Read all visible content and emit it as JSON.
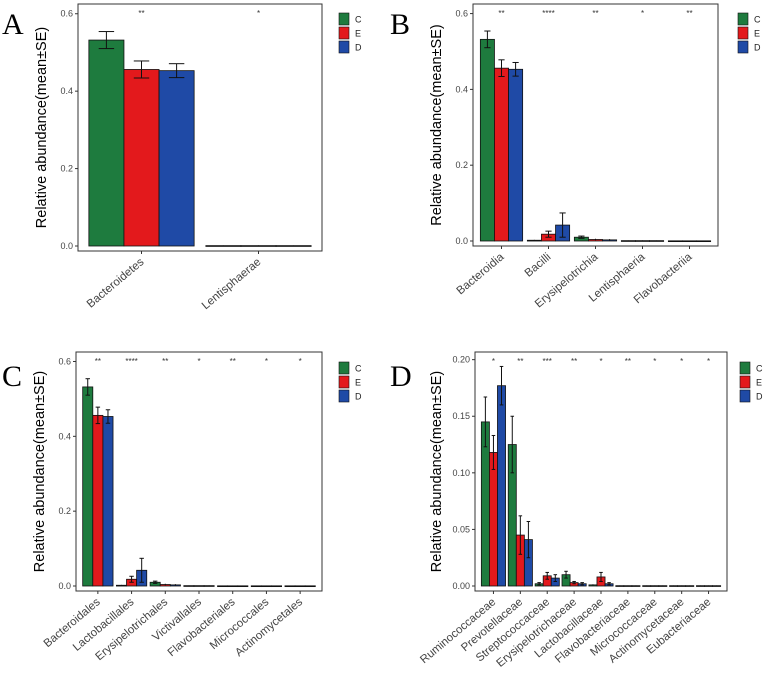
{
  "colors": {
    "C": "#1e7b3e",
    "E": "#e3191c",
    "D": "#1f4aa6"
  },
  "ylabel": "Relative abundance(mean±SE)",
  "legend": [
    "C",
    "E",
    "D"
  ],
  "chart_data": [
    {
      "panel": "A",
      "type": "bar",
      "ylabel": "Relative abundance(mean±SE)",
      "ylim": [
        0,
        0.62
      ],
      "yticks": [
        "0.0",
        "0.2",
        "0.4",
        "0.6"
      ],
      "categories": [
        "Bacteroidetes",
        "Lentisphaerae"
      ],
      "significance": [
        "**",
        "*"
      ],
      "series": [
        {
          "name": "C",
          "values": [
            0.532,
            0.001
          ],
          "se": [
            0.022,
            0.0005
          ]
        },
        {
          "name": "E",
          "values": [
            0.456,
            0.001
          ],
          "se": [
            0.022,
            0.0005
          ]
        },
        {
          "name": "D",
          "values": [
            0.453,
            0.001
          ],
          "se": [
            0.018,
            0.0005
          ]
        }
      ],
      "legend": [
        "C",
        "E",
        "D"
      ]
    },
    {
      "panel": "B",
      "type": "bar",
      "ylabel": "Relative abundance(mean±SE)",
      "ylim": [
        0,
        0.62
      ],
      "yticks": [
        "0.0",
        "0.2",
        "0.4",
        "0.6"
      ],
      "categories": [
        "Bacteroidia",
        "Bacilli",
        "Erysipelotrichia",
        "Lentisphaeria",
        "Flavobacteriia"
      ],
      "significance": [
        "**",
        "****",
        "**",
        "*",
        "**"
      ],
      "series": [
        {
          "name": "C",
          "values": [
            0.532,
            0.002,
            0.01,
            0.001,
            0.0005
          ],
          "se": [
            0.022,
            0.001,
            0.003,
            0.0005,
            0.0003
          ]
        },
        {
          "name": "E",
          "values": [
            0.456,
            0.018,
            0.004,
            0.001,
            0.0005
          ],
          "se": [
            0.022,
            0.008,
            0.002,
            0.0005,
            0.0003
          ]
        },
        {
          "name": "D",
          "values": [
            0.453,
            0.042,
            0.003,
            0.001,
            0.0005
          ],
          "se": [
            0.018,
            0.032,
            0.002,
            0.0005,
            0.0003
          ]
        }
      ],
      "legend": [
        "C",
        "E",
        "D"
      ]
    },
    {
      "panel": "C",
      "type": "bar",
      "ylabel": "Relative abundance(mean±SE)",
      "ylim": [
        0,
        0.62
      ],
      "yticks": [
        "0.0",
        "0.2",
        "0.4",
        "0.6"
      ],
      "categories": [
        "Bacteroidales",
        "Lactobacillales",
        "Erysipelotrichales",
        "Victivallales",
        "Flavobacteriales",
        "Micrococcales",
        "Actinomycetales"
      ],
      "significance": [
        "**",
        "****",
        "**",
        "*",
        "**",
        "*",
        "*"
      ],
      "series": [
        {
          "name": "C",
          "values": [
            0.532,
            0.002,
            0.01,
            0.001,
            0.0005,
            0.0005,
            0.0005
          ],
          "se": [
            0.022,
            0.001,
            0.003,
            0.0005,
            0.0003,
            0.0003,
            0.0003
          ]
        },
        {
          "name": "E",
          "values": [
            0.456,
            0.018,
            0.004,
            0.001,
            0.0005,
            0.0005,
            0.0005
          ],
          "se": [
            0.022,
            0.008,
            0.002,
            0.0005,
            0.0003,
            0.0003,
            0.0003
          ]
        },
        {
          "name": "D",
          "values": [
            0.453,
            0.042,
            0.003,
            0.001,
            0.0005,
            0.0005,
            0.0005
          ],
          "se": [
            0.018,
            0.032,
            0.002,
            0.0005,
            0.0003,
            0.0003,
            0.0003
          ]
        }
      ],
      "legend": [
        "C",
        "E",
        "D"
      ]
    },
    {
      "panel": "D",
      "type": "bar",
      "ylabel": "Relative abundance(mean±SE)",
      "ylim": [
        0,
        0.205
      ],
      "yticks": [
        "0.00",
        "0.05",
        "0.10",
        "0.15",
        "0.20"
      ],
      "categories": [
        "Ruminococcaceae",
        "Prevotellaceae",
        "Streptococcaceae",
        "Erysipelotrichaceae",
        "Lactobacillaceae",
        "Flavobacteriaceae",
        "Micrococcaceae",
        "Actinomycetaceae",
        "Eubacteriaceae"
      ],
      "significance": [
        "*",
        "**",
        "***",
        "**",
        "*",
        "**",
        "*",
        "*",
        "*"
      ],
      "series": [
        {
          "name": "C",
          "values": [
            0.145,
            0.125,
            0.002,
            0.01,
            0.001,
            0.0003,
            0.0003,
            0.0003,
            0.0003
          ],
          "se": [
            0.022,
            0.025,
            0.001,
            0.003,
            0.0005,
            0.0002,
            0.0002,
            0.0002,
            0.0002
          ]
        },
        {
          "name": "E",
          "values": [
            0.118,
            0.045,
            0.009,
            0.003,
            0.008,
            0.0003,
            0.0003,
            0.0003,
            0.0003
          ],
          "se": [
            0.015,
            0.017,
            0.003,
            0.001,
            0.004,
            0.0002,
            0.0002,
            0.0002,
            0.0002
          ]
        },
        {
          "name": "D",
          "values": [
            0.177,
            0.041,
            0.007,
            0.002,
            0.002,
            0.0003,
            0.0003,
            0.0003,
            0.0003
          ],
          "se": [
            0.017,
            0.016,
            0.003,
            0.001,
            0.001,
            0.0002,
            0.0002,
            0.0002,
            0.0002
          ]
        }
      ],
      "legend": [
        "C",
        "E",
        "D"
      ]
    }
  ]
}
